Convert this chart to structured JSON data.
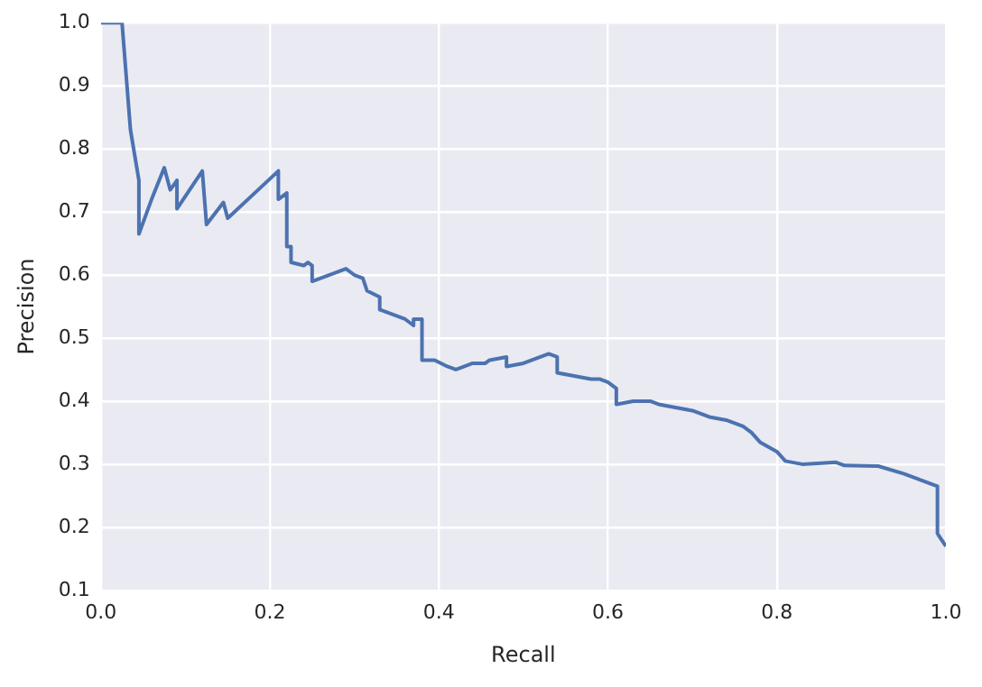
{
  "chart_data": {
    "type": "line",
    "xlabel": "Recall",
    "ylabel": "Precision",
    "grid": true,
    "legend": false,
    "marker": "none",
    "line_style": "solid",
    "xlim": [
      0,
      1
    ],
    "ylim": [
      0.1,
      1
    ],
    "xticks": [
      {
        "value": 0,
        "label": "0.0"
      },
      {
        "value": 0.2,
        "label": "0.2"
      },
      {
        "value": 0.4,
        "label": "0.4"
      },
      {
        "value": 0.6,
        "label": "0.6"
      },
      {
        "value": 0.8,
        "label": "0.8"
      },
      {
        "value": 1,
        "label": "1.0"
      }
    ],
    "yticks": [
      {
        "value": 0.1,
        "label": "0.1"
      },
      {
        "value": 0.2,
        "label": "0.2"
      },
      {
        "value": 0.3,
        "label": "0.3"
      },
      {
        "value": 0.4,
        "label": "0.4"
      },
      {
        "value": 0.5,
        "label": "0.5"
      },
      {
        "value": 0.6,
        "label": "0.6"
      },
      {
        "value": 0.7,
        "label": "0.7"
      },
      {
        "value": 0.8,
        "label": "0.8"
      },
      {
        "value": 0.9,
        "label": "0.9"
      },
      {
        "value": 1,
        "label": "1.0"
      }
    ],
    "series": [
      {
        "color": "#4c72b0",
        "x": [
          0,
          0.025,
          0.035,
          0.045,
          0.045,
          0.06,
          0.075,
          0.082,
          0.09,
          0.09,
          0.12,
          0.125,
          0.145,
          0.15,
          0.21,
          0.21,
          0.22,
          0.22,
          0.225,
          0.225,
          0.24,
          0.245,
          0.25,
          0.25,
          0.27,
          0.29,
          0.3,
          0.31,
          0.315,
          0.33,
          0.33,
          0.35,
          0.36,
          0.37,
          0.37,
          0.38,
          0.38,
          0.395,
          0.41,
          0.42,
          0.44,
          0.455,
          0.46,
          0.48,
          0.48,
          0.5,
          0.53,
          0.54,
          0.54,
          0.56,
          0.58,
          0.59,
          0.6,
          0.61,
          0.61,
          0.63,
          0.65,
          0.66,
          0.68,
          0.7,
          0.72,
          0.74,
          0.76,
          0.77,
          0.78,
          0.8,
          0.81,
          0.83,
          0.87,
          0.88,
          0.92,
          0.95,
          0.97,
          0.99,
          0.99,
          1.0
        ],
        "values": [
          1,
          1,
          0.83,
          0.75,
          0.665,
          0.72,
          0.77,
          0.735,
          0.75,
          0.705,
          0.765,
          0.68,
          0.715,
          0.69,
          0.765,
          0.72,
          0.73,
          0.645,
          0.645,
          0.62,
          0.615,
          0.62,
          0.615,
          0.59,
          0.6,
          0.61,
          0.6,
          0.595,
          0.575,
          0.565,
          0.545,
          0.535,
          0.53,
          0.52,
          0.53,
          0.53,
          0.465,
          0.465,
          0.455,
          0.45,
          0.46,
          0.46,
          0.465,
          0.47,
          0.455,
          0.46,
          0.475,
          0.47,
          0.445,
          0.44,
          0.435,
          0.435,
          0.43,
          0.42,
          0.395,
          0.4,
          0.4,
          0.395,
          0.39,
          0.385,
          0.375,
          0.37,
          0.36,
          0.35,
          0.335,
          0.32,
          0.305,
          0.3,
          0.303,
          0.298,
          0.297,
          0.285,
          0.275,
          0.265,
          0.19,
          0.17
        ]
      }
    ]
  }
}
